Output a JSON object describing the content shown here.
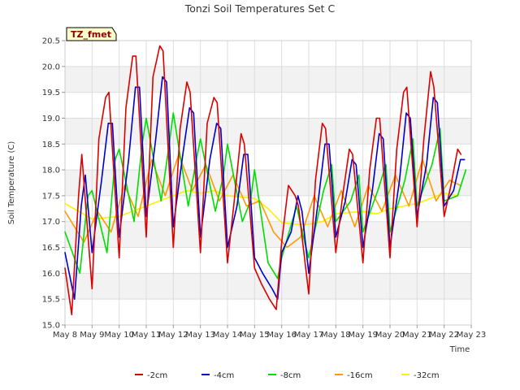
{
  "chart_data": {
    "type": "line",
    "title": "Tonzi Soil Temperatures Set C",
    "xlabel": "Time",
    "ylabel": "Soil Temperature (C)",
    "site_badge": "TZ_fmet",
    "legend_position": "bottom-center",
    "grid": true,
    "ylim": [
      15.0,
      20.5
    ],
    "xlim": [
      0,
      15
    ],
    "y_ticks": [
      "15.0",
      "15.5",
      "16.0",
      "16.5",
      "17.0",
      "17.5",
      "18.0",
      "18.5",
      "19.0",
      "19.5",
      "20.0",
      "20.5"
    ],
    "x_tick_labels": [
      "May 8",
      "May 9",
      "May 10",
      "May 11",
      "May 12",
      "May 13",
      "May 14",
      "May 15",
      "May 16",
      "May 17",
      "May 18",
      "May 19",
      "May 20",
      "May 21",
      "May 22",
      "May 23"
    ],
    "x_unit": "days since May 8",
    "series": [
      {
        "name": "-2cm",
        "color": "#dd0000",
        "x": [
          0,
          0.25,
          0.5,
          0.62,
          1.0,
          1.25,
          1.5,
          1.62,
          2.0,
          2.25,
          2.5,
          2.62,
          3.0,
          3.25,
          3.5,
          3.62,
          4.0,
          4.25,
          4.5,
          4.62,
          5.0,
          5.25,
          5.5,
          5.62,
          6.0,
          6.25,
          6.5,
          6.62,
          7.0,
          7.25,
          7.55,
          7.8,
          8.0,
          8.25,
          8.5,
          8.62,
          9.0,
          9.25,
          9.5,
          9.62,
          10.0,
          10.25,
          10.5,
          10.62,
          11.0,
          11.25,
          11.5,
          11.62,
          12.0,
          12.25,
          12.5,
          12.62,
          13.0,
          13.25,
          13.5,
          13.62,
          14.0,
          14.25,
          14.5,
          14.62
        ],
        "values": [
          16.1,
          15.2,
          17.5,
          18.3,
          15.7,
          18.6,
          19.4,
          19.5,
          16.3,
          19.2,
          20.2,
          20.2,
          16.7,
          19.8,
          20.4,
          20.3,
          16.5,
          18.8,
          19.7,
          19.5,
          16.4,
          18.9,
          19.4,
          19.3,
          16.2,
          17.4,
          18.7,
          18.5,
          16.1,
          15.8,
          15.5,
          15.3,
          16.6,
          17.7,
          17.5,
          17.3,
          15.6,
          17.8,
          18.9,
          18.8,
          16.4,
          17.5,
          18.4,
          18.3,
          16.2,
          18.0,
          19.0,
          19.0,
          16.3,
          18.4,
          19.5,
          19.6,
          16.9,
          18.6,
          19.9,
          19.6,
          17.1,
          17.7,
          18.4,
          18.3
        ]
      },
      {
        "name": "-4cm",
        "color": "#0000cc",
        "x": [
          0,
          0.35,
          0.6,
          0.75,
          1.0,
          1.35,
          1.6,
          1.75,
          2.0,
          2.35,
          2.6,
          2.75,
          3.0,
          3.35,
          3.6,
          3.75,
          4.0,
          4.35,
          4.6,
          4.75,
          5.0,
          5.35,
          5.6,
          5.75,
          6.0,
          6.35,
          6.6,
          6.75,
          7.0,
          7.3,
          7.65,
          7.85,
          8.0,
          8.35,
          8.6,
          8.75,
          9.0,
          9.35,
          9.6,
          9.75,
          10.0,
          10.35,
          10.6,
          10.75,
          11.0,
          11.35,
          11.6,
          11.75,
          12.0,
          12.35,
          12.6,
          12.75,
          13.0,
          13.35,
          13.6,
          13.75,
          14.0,
          14.35,
          14.6,
          14.75
        ],
        "values": [
          16.4,
          15.5,
          17.3,
          17.9,
          16.4,
          17.8,
          18.9,
          18.9,
          16.7,
          18.2,
          19.6,
          19.6,
          17.1,
          18.6,
          19.8,
          19.7,
          16.9,
          18.3,
          19.2,
          19.1,
          16.7,
          18.2,
          18.9,
          18.8,
          16.5,
          17.3,
          18.3,
          18.3,
          16.3,
          16.0,
          15.7,
          15.5,
          16.4,
          16.8,
          17.5,
          17.2,
          16.0,
          17.4,
          18.5,
          18.5,
          16.7,
          17.4,
          18.2,
          18.1,
          16.5,
          17.6,
          18.7,
          18.6,
          16.5,
          17.8,
          19.1,
          19.0,
          17.1,
          18.1,
          19.4,
          19.3,
          17.3,
          17.6,
          18.2,
          18.2
        ]
      },
      {
        "name": "-8cm",
        "color": "#00dd00",
        "x": [
          0,
          0.55,
          0.85,
          1.0,
          1.55,
          1.85,
          2.0,
          2.55,
          2.85,
          3.0,
          3.55,
          3.85,
          4.0,
          4.55,
          4.85,
          5.0,
          5.55,
          5.85,
          6.0,
          6.55,
          6.85,
          7.0,
          7.5,
          7.85,
          8.0,
          8.55,
          8.85,
          9.0,
          9.55,
          9.85,
          10.0,
          10.55,
          10.85,
          11.0,
          11.55,
          11.85,
          12.0,
          12.55,
          12.85,
          13.0,
          13.55,
          13.85,
          14.0,
          14.5,
          14.8
        ],
        "values": [
          16.8,
          16.0,
          17.5,
          17.6,
          16.4,
          18.2,
          18.4,
          17.0,
          18.5,
          19.0,
          17.4,
          18.5,
          19.1,
          17.3,
          18.2,
          18.6,
          17.2,
          17.9,
          18.5,
          17.0,
          17.4,
          18.0,
          16.2,
          15.9,
          16.3,
          17.3,
          16.6,
          16.3,
          17.6,
          18.1,
          17.0,
          17.4,
          17.9,
          16.8,
          17.6,
          18.1,
          16.8,
          17.8,
          18.6,
          17.3,
          18.1,
          18.8,
          17.4,
          17.5,
          18.0
        ]
      },
      {
        "name": "-16cm",
        "color": "#ff9900",
        "x": [
          0,
          0.7,
          1.2,
          1.7,
          2.2,
          2.7,
          3.2,
          3.7,
          4.2,
          4.7,
          5.2,
          5.7,
          6.2,
          6.7,
          7.2,
          7.7,
          8.2,
          8.7,
          9.2,
          9.7,
          10.2,
          10.7,
          11.2,
          11.7,
          12.2,
          12.7,
          13.2,
          13.7,
          14.2,
          14.6
        ],
        "values": [
          17.2,
          16.6,
          17.2,
          16.8,
          17.7,
          17.1,
          18.2,
          17.5,
          18.3,
          17.6,
          18.1,
          17.4,
          17.9,
          17.3,
          17.4,
          16.8,
          16.5,
          16.7,
          17.5,
          16.9,
          17.6,
          16.9,
          17.7,
          17.2,
          17.9,
          17.3,
          18.2,
          17.4,
          17.8,
          17.7
        ]
      },
      {
        "name": "-32cm",
        "color": "#ffee00",
        "x": [
          0,
          1.0,
          2.0,
          3.0,
          4.0,
          4.5,
          5.0,
          5.5,
          6.0,
          7.0,
          7.5,
          8.0,
          8.5,
          9.0,
          9.5,
          10.0,
          11.0,
          11.5,
          12.0,
          12.5,
          13.0,
          13.5,
          14.0,
          14.5
        ],
        "values": [
          17.35,
          17.05,
          17.1,
          17.3,
          17.5,
          17.6,
          17.55,
          17.6,
          17.5,
          17.45,
          17.25,
          16.98,
          16.95,
          16.95,
          17.0,
          17.15,
          17.2,
          17.15,
          17.25,
          17.3,
          17.35,
          17.45,
          17.55,
          17.5
        ]
      }
    ]
  }
}
